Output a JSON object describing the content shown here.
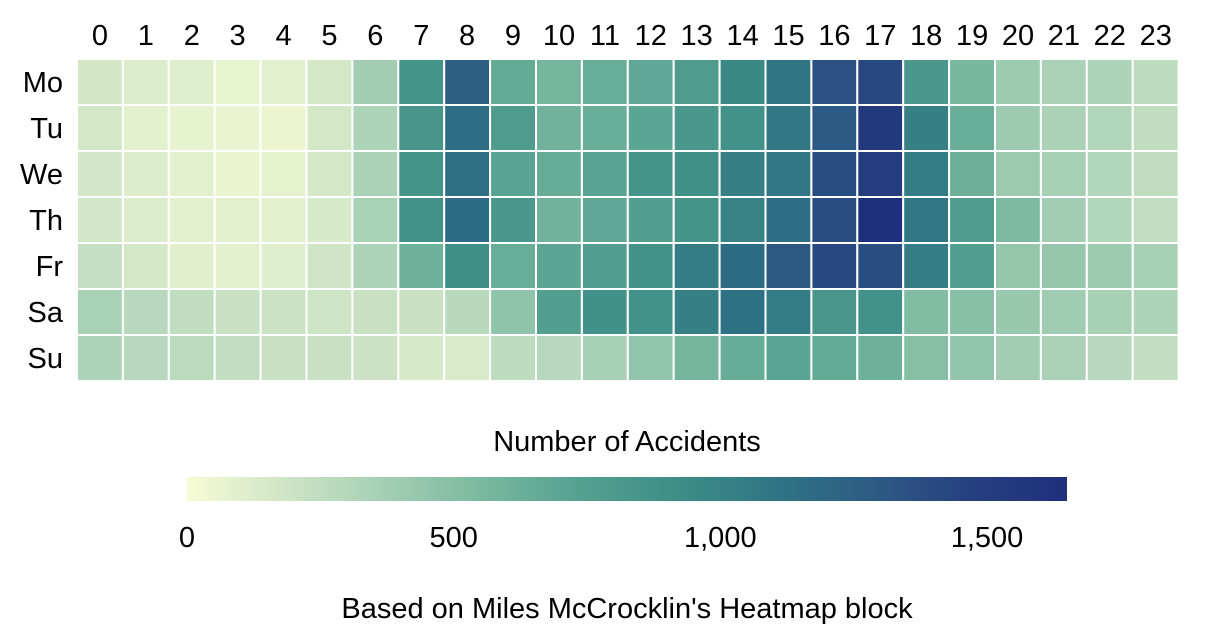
{
  "chart_data": {
    "type": "heatmap",
    "title": "",
    "x_categories": [
      "0",
      "1",
      "2",
      "3",
      "4",
      "5",
      "6",
      "7",
      "8",
      "9",
      "10",
      "11",
      "12",
      "13",
      "14",
      "15",
      "16",
      "17",
      "18",
      "19",
      "20",
      "21",
      "22",
      "23"
    ],
    "y_categories": [
      "Mo",
      "Tu",
      "We",
      "Th",
      "Fr",
      "Sa",
      "Su"
    ],
    "values": [
      [
        165,
        120,
        110,
        70,
        95,
        160,
        380,
        860,
        1260,
        660,
        580,
        640,
        680,
        780,
        950,
        1100,
        1350,
        1420,
        820,
        560,
        400,
        340,
        330,
        260
      ],
      [
        160,
        85,
        75,
        55,
        50,
        160,
        330,
        840,
        1150,
        780,
        600,
        640,
        700,
        820,
        880,
        1080,
        1290,
        1540,
        1030,
        640,
        400,
        340,
        310,
        250
      ],
      [
        170,
        120,
        95,
        60,
        80,
        160,
        340,
        860,
        1140,
        720,
        650,
        720,
        860,
        900,
        1020,
        1080,
        1380,
        1500,
        1040,
        620,
        410,
        360,
        310,
        250
      ],
      [
        170,
        120,
        95,
        90,
        90,
        150,
        350,
        880,
        1170,
        820,
        600,
        680,
        760,
        860,
        1000,
        1150,
        1380,
        1640,
        1080,
        780,
        540,
        380,
        310,
        240
      ],
      [
        230,
        160,
        100,
        90,
        110,
        180,
        330,
        610,
        920,
        640,
        700,
        760,
        880,
        1040,
        1160,
        1300,
        1410,
        1380,
        1040,
        750,
        440,
        430,
        400,
        360
      ],
      [
        350,
        290,
        250,
        220,
        200,
        190,
        220,
        220,
        280,
        460,
        750,
        890,
        880,
        1020,
        1130,
        1050,
        830,
        880,
        520,
        490,
        420,
        390,
        360,
        330
      ],
      [
        330,
        290,
        270,
        240,
        220,
        220,
        200,
        150,
        140,
        260,
        290,
        360,
        450,
        570,
        650,
        710,
        660,
        610,
        500,
        450,
        380,
        340,
        290,
        240
      ]
    ],
    "colorscale": {
      "domain": [
        0,
        1650
      ],
      "colors": [
        "#f7fbd4",
        "#cfe5c6",
        "#a5cfb4",
        "#7ab9a0",
        "#55a190",
        "#3e8e87",
        "#2f7584",
        "#2d5b84",
        "#27407f",
        "#1e2f7d"
      ]
    },
    "legend": {
      "title": "Number of Accidents",
      "ticks": [
        "0",
        "500",
        "1,000",
        "1,500"
      ],
      "tick_values": [
        0,
        500,
        1000,
        1500
      ],
      "placement": "bottom"
    },
    "caption": "Based on Miles McCrocklin's Heatmap block",
    "grid": false
  }
}
